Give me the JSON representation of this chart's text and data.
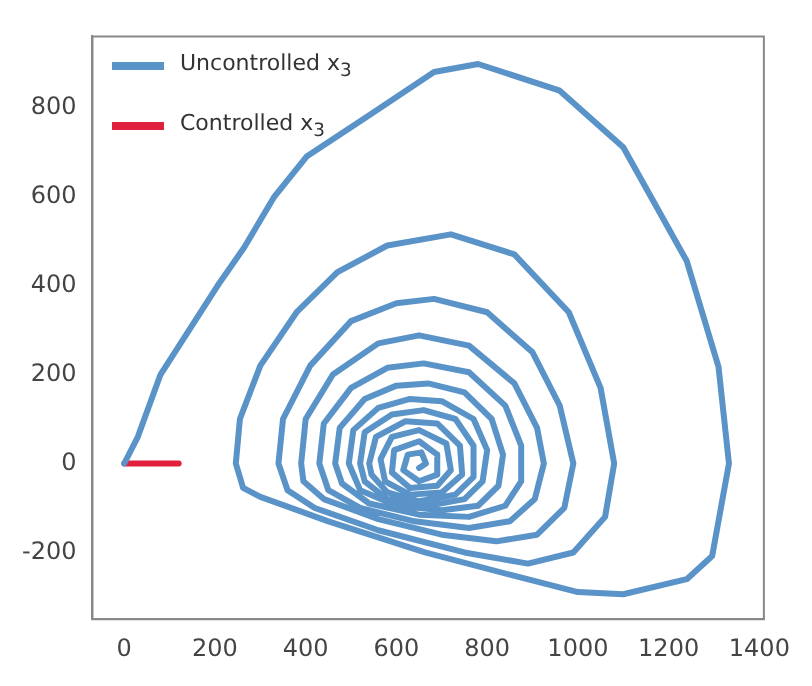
{
  "chart_data": {
    "type": "line",
    "xlim": [
      -70,
      1410
    ],
    "ylim": [
      -350,
      960
    ],
    "xticks": [
      0,
      200,
      400,
      600,
      800,
      1000,
      1200,
      1400
    ],
    "yticks": [
      -200,
      0,
      200,
      400,
      600,
      800
    ],
    "grid": false,
    "legend": "top left",
    "marker": "none",
    "line_style": "solid",
    "series": [
      {
        "name": "Uncontrolled x$_{3}$",
        "color": "#5a93c8",
        "x": [
          0,
          30,
          80,
          206,
          264,
          331,
          402,
          540,
          683,
          780,
          960,
          1100,
          1240,
          1310,
          1333,
          1296,
          1240,
          1100,
          1000,
          850,
          663,
          450,
          300,
          262,
          246,
          255,
          300,
          380,
          470,
          580,
          720,
          860,
          980,
          1050,
          1080,
          1060,
          990,
          890,
          750,
          560,
          420,
          360,
          340,
          350,
          410,
          500,
          600,
          683,
          800,
          900,
          960,
          990,
          970,
          910,
          820,
          700,
          560,
          440,
          395,
          390,
          400,
          460,
          560,
          650,
          760,
          860,
          910,
          925,
          905,
          850,
          760,
          640,
          520,
          450,
          430,
          440,
          500,
          580,
          660,
          760,
          840,
          875,
          875,
          840,
          760,
          650,
          540,
          480,
          465,
          475,
          530,
          600,
          670,
          750,
          810,
          835,
          825,
          780,
          700,
          600,
          520,
          495,
          505,
          560,
          630,
          700,
          770,
          800,
          790,
          750,
          670,
          580,
          530,
          520,
          530,
          590,
          660,
          730,
          770,
          770,
          730,
          650,
          580,
          545,
          540,
          555,
          620,
          690,
          740,
          745,
          700,
          630,
          575,
          565,
          590,
          650,
          710,
          720,
          690,
          630,
          590,
          595,
          650,
          690,
          690,
          650,
          615,
          625,
          655,
          665,
          650
        ],
        "values": [
          0,
          60,
          200,
          400,
          485,
          600,
          690,
          783,
          880,
          898,
          838,
          711,
          455,
          217,
          0,
          -208,
          -260,
          -294,
          -289,
          -250,
          -200,
          -130,
          -75,
          -55,
          0,
          100,
          220,
          340,
          430,
          490,
          515,
          470,
          340,
          170,
          0,
          -120,
          -200,
          -225,
          -200,
          -150,
          -100,
          -60,
          0,
          100,
          220,
          320,
          360,
          370,
          340,
          250,
          130,
          0,
          -100,
          -160,
          -175,
          -160,
          -125,
          -80,
          -40,
          0,
          100,
          200,
          270,
          288,
          265,
          180,
          80,
          0,
          -80,
          -130,
          -145,
          -130,
          -100,
          -60,
          0,
          90,
          170,
          215,
          225,
          205,
          130,
          40,
          -40,
          -95,
          -120,
          -115,
          -90,
          -45,
          0,
          80,
          145,
          175,
          180,
          160,
          100,
          20,
          -50,
          -95,
          -105,
          -95,
          -60,
          0,
          75,
          125,
          145,
          140,
          100,
          30,
          -40,
          -80,
          -95,
          -80,
          -40,
          0,
          70,
          110,
          120,
          100,
          40,
          -30,
          -70,
          -85,
          -65,
          -25,
          0,
          60,
          95,
          90,
          40,
          -25,
          -65,
          -70,
          -40,
          10,
          60,
          75,
          45,
          -15,
          -50,
          -55,
          -20,
          30,
          50,
          20,
          -25,
          -40,
          -15,
          20,
          25,
          0,
          -10
        ]
      },
      {
        "name": "Controlled x$_{3}$",
        "color": "#e0203c",
        "x": [
          0,
          120
        ],
        "values": [
          0,
          0
        ]
      }
    ]
  }
}
